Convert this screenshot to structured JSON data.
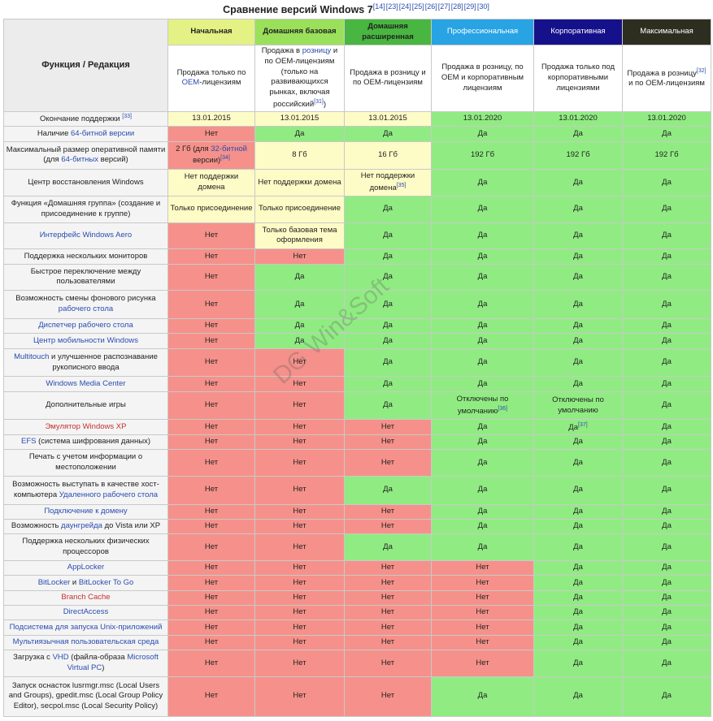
{
  "caption": {
    "title": "Сравнение версий Windows 7",
    "refs": [
      "[14]",
      "[23]",
      "[24]",
      "[25]",
      "[26]",
      "[27]",
      "[28]",
      "[29]",
      "[30]"
    ]
  },
  "corner_label": "Функция / Редакция",
  "editions": [
    {
      "name": "Начальная",
      "note": [
        {
          "t": "Продажа только по "
        },
        {
          "t": "OEM",
          "link": true
        },
        {
          "t": "-лицензиям"
        }
      ]
    },
    {
      "name": "Домашняя базовая",
      "note": [
        {
          "t": "Продажа в "
        },
        {
          "t": "розницу",
          "link": true
        },
        {
          "t": " и по OEM-лицензиям (только на развивающихся рынках, включая российский"
        },
        {
          "t": "[31]",
          "ref": true
        },
        {
          "t": ")"
        }
      ]
    },
    {
      "name": "Домашняя расширенная",
      "note": [
        {
          "t": "Продажа в розницу и по OEM-лицензиям"
        }
      ]
    },
    {
      "name": "Профессиональная",
      "note": [
        {
          "t": "Продажа в розницу, по OEM и корпоративным лицензиям"
        }
      ]
    },
    {
      "name": "Корпоративная",
      "note": [
        {
          "t": "Продажа только под корпоративными лицензиями"
        }
      ]
    },
    {
      "name": "Максимальная",
      "note": [
        {
          "t": "Продажа в розницу"
        },
        {
          "t": "[32]",
          "ref": true
        },
        {
          "t": " и по OEM-лицензиям"
        }
      ]
    }
  ],
  "rows": [
    {
      "feature": [
        {
          "t": "Окончание поддержки "
        },
        {
          "t": "[33]",
          "ref": true
        }
      ],
      "cells": [
        {
          "v": "13.01.2015",
          "s": "part"
        },
        {
          "v": "13.01.2015",
          "s": "part"
        },
        {
          "v": "13.01.2015",
          "s": "part"
        },
        {
          "v": "13.01.2020",
          "s": "yes"
        },
        {
          "v": "13.01.2020",
          "s": "yes"
        },
        {
          "v": "13.01.2020",
          "s": "yes"
        }
      ]
    },
    {
      "feature": [
        {
          "t": "Наличие "
        },
        {
          "t": "64-битной версии",
          "link": true
        }
      ],
      "cells": [
        {
          "v": "Нет",
          "s": "no"
        },
        {
          "v": "Да",
          "s": "yes"
        },
        {
          "v": "Да",
          "s": "yes"
        },
        {
          "v": "Да",
          "s": "yes"
        },
        {
          "v": "Да",
          "s": "yes"
        },
        {
          "v": "Да",
          "s": "yes"
        }
      ]
    },
    {
      "feature": [
        {
          "t": "Максимальный размер оперативной памяти (для "
        },
        {
          "t": "64-битных",
          "link": true
        },
        {
          "t": " версий)"
        }
      ],
      "cells": [
        {
          "v": "2 Гб (для ",
          "s": "no",
          "extra": [
            {
              "t": "32-битной",
              "link": true
            },
            {
              "t": " версии)"
            },
            {
              "t": "[34]",
              "ref": true
            }
          ]
        },
        {
          "v": "8 Гб",
          "s": "part"
        },
        {
          "v": "16 Гб",
          "s": "part"
        },
        {
          "v": "192 Гб",
          "s": "yes"
        },
        {
          "v": "192 Гб",
          "s": "yes"
        },
        {
          "v": "192 Гб",
          "s": "yes"
        }
      ]
    },
    {
      "feature": [
        {
          "t": "Центр восстановления Windows"
        }
      ],
      "cells": [
        {
          "v": "Нет поддержки домена",
          "s": "part"
        },
        {
          "v": "Нет поддержки домена",
          "s": "part"
        },
        {
          "v": "Нет поддержки домена",
          "s": "part",
          "extra": [
            {
              "t": "[35]",
              "ref": true
            }
          ]
        },
        {
          "v": "Да",
          "s": "yes"
        },
        {
          "v": "Да",
          "s": "yes"
        },
        {
          "v": "Да",
          "s": "yes"
        }
      ]
    },
    {
      "feature": [
        {
          "t": "Функция «Домашняя группа» (создание и присоединение к группе)"
        }
      ],
      "cells": [
        {
          "v": "Только присоединение",
          "s": "part"
        },
        {
          "v": "Только присоединение",
          "s": "part"
        },
        {
          "v": "Да",
          "s": "yes"
        },
        {
          "v": "Да",
          "s": "yes"
        },
        {
          "v": "Да",
          "s": "yes"
        },
        {
          "v": "Да",
          "s": "yes"
        }
      ]
    },
    {
      "feature": [
        {
          "t": "Интерфейс Windows Aero",
          "link": true
        }
      ],
      "cells": [
        {
          "v": "Нет",
          "s": "no"
        },
        {
          "v": "Только базовая тема оформления",
          "s": "part"
        },
        {
          "v": "Да",
          "s": "yes"
        },
        {
          "v": "Да",
          "s": "yes"
        },
        {
          "v": "Да",
          "s": "yes"
        },
        {
          "v": "Да",
          "s": "yes"
        }
      ]
    },
    {
      "feature": [
        {
          "t": "Поддержка нескольких мониторов"
        }
      ],
      "cells": [
        {
          "v": "Нет",
          "s": "no"
        },
        {
          "v": "Нет",
          "s": "no"
        },
        {
          "v": "Да",
          "s": "yes"
        },
        {
          "v": "Да",
          "s": "yes"
        },
        {
          "v": "Да",
          "s": "yes"
        },
        {
          "v": "Да",
          "s": "yes"
        }
      ]
    },
    {
      "feature": [
        {
          "t": "Быстрое переключение между пользователями"
        }
      ],
      "cells": [
        {
          "v": "Нет",
          "s": "no"
        },
        {
          "v": "Да",
          "s": "yes"
        },
        {
          "v": "Да",
          "s": "yes"
        },
        {
          "v": "Да",
          "s": "yes"
        },
        {
          "v": "Да",
          "s": "yes"
        },
        {
          "v": "Да",
          "s": "yes"
        }
      ]
    },
    {
      "feature": [
        {
          "t": "Возможность смены фонового рисунка "
        },
        {
          "t": "рабочего стола",
          "link": true
        }
      ],
      "cells": [
        {
          "v": "Нет",
          "s": "no"
        },
        {
          "v": "Да",
          "s": "yes"
        },
        {
          "v": "Да",
          "s": "yes"
        },
        {
          "v": "Да",
          "s": "yes"
        },
        {
          "v": "Да",
          "s": "yes"
        },
        {
          "v": "Да",
          "s": "yes"
        }
      ]
    },
    {
      "feature": [
        {
          "t": "Диспетчер рабочего стола",
          "link": true
        }
      ],
      "cells": [
        {
          "v": "Нет",
          "s": "no"
        },
        {
          "v": "Да",
          "s": "yes"
        },
        {
          "v": "Да",
          "s": "yes"
        },
        {
          "v": "Да",
          "s": "yes"
        },
        {
          "v": "Да",
          "s": "yes"
        },
        {
          "v": "Да",
          "s": "yes"
        }
      ]
    },
    {
      "feature": [
        {
          "t": "Центр мобильности Windows",
          "link": true
        }
      ],
      "cells": [
        {
          "v": "Нет",
          "s": "no"
        },
        {
          "v": "Да",
          "s": "yes"
        },
        {
          "v": "Да",
          "s": "yes"
        },
        {
          "v": "Да",
          "s": "yes"
        },
        {
          "v": "Да",
          "s": "yes"
        },
        {
          "v": "Да",
          "s": "yes"
        }
      ]
    },
    {
      "feature": [
        {
          "t": "Multitouch",
          "link": true
        },
        {
          "t": " и улучшенное распознавание рукописного ввода"
        }
      ],
      "cells": [
        {
          "v": "Нет",
          "s": "no"
        },
        {
          "v": "Нет",
          "s": "no"
        },
        {
          "v": "Да",
          "s": "yes"
        },
        {
          "v": "Да",
          "s": "yes"
        },
        {
          "v": "Да",
          "s": "yes"
        },
        {
          "v": "Да",
          "s": "yes"
        }
      ]
    },
    {
      "feature": [
        {
          "t": "Windows Media Center",
          "link": true
        }
      ],
      "cells": [
        {
          "v": "Нет",
          "s": "no"
        },
        {
          "v": "Нет",
          "s": "no"
        },
        {
          "v": "Да",
          "s": "yes"
        },
        {
          "v": "Да",
          "s": "yes"
        },
        {
          "v": "Да",
          "s": "yes"
        },
        {
          "v": "Да",
          "s": "yes"
        }
      ]
    },
    {
      "feature": [
        {
          "t": "Дополнительные игры"
        }
      ],
      "cells": [
        {
          "v": "Нет",
          "s": "no"
        },
        {
          "v": "Нет",
          "s": "no"
        },
        {
          "v": "Да",
          "s": "yes"
        },
        {
          "v": "Отключены по умолчанию",
          "s": "yes",
          "extra": [
            {
              "t": "[36]",
              "ref": true
            }
          ]
        },
        {
          "v": "Отключены по умолчанию",
          "s": "yes"
        },
        {
          "v": "Да",
          "s": "yes"
        }
      ]
    },
    {
      "feature": [
        {
          "t": "Эмулятор Windows XP",
          "red": true
        }
      ],
      "cells": [
        {
          "v": "Нет",
          "s": "no"
        },
        {
          "v": "Нет",
          "s": "no"
        },
        {
          "v": "Нет",
          "s": "no"
        },
        {
          "v": "Да",
          "s": "yes"
        },
        {
          "v": "Да",
          "s": "yes",
          "extra": [
            {
              "t": "[37]",
              "ref": true
            }
          ]
        },
        {
          "v": "Да",
          "s": "yes"
        }
      ]
    },
    {
      "feature": [
        {
          "t": "EFS",
          "link": true
        },
        {
          "t": " (система шифрования данных)"
        }
      ],
      "cells": [
        {
          "v": "Нет",
          "s": "no"
        },
        {
          "v": "Нет",
          "s": "no"
        },
        {
          "v": "Нет",
          "s": "no"
        },
        {
          "v": "Да",
          "s": "yes"
        },
        {
          "v": "Да",
          "s": "yes"
        },
        {
          "v": "Да",
          "s": "yes"
        }
      ]
    },
    {
      "feature": [
        {
          "t": "Печать с учетом информации о местоположении"
        }
      ],
      "cells": [
        {
          "v": "Нет",
          "s": "no"
        },
        {
          "v": "Нет",
          "s": "no"
        },
        {
          "v": "Нет",
          "s": "no"
        },
        {
          "v": "Да",
          "s": "yes"
        },
        {
          "v": "Да",
          "s": "yes"
        },
        {
          "v": "Да",
          "s": "yes"
        }
      ]
    },
    {
      "feature": [
        {
          "t": "Возможность выступать в качестве хост-компьютера "
        },
        {
          "t": "Удаленного рабочего стола",
          "link": true
        }
      ],
      "cells": [
        {
          "v": "Нет",
          "s": "no"
        },
        {
          "v": "Нет",
          "s": "no"
        },
        {
          "v": "Да",
          "s": "yes"
        },
        {
          "v": "Да",
          "s": "yes"
        },
        {
          "v": "Да",
          "s": "yes"
        },
        {
          "v": "Да",
          "s": "yes"
        }
      ]
    },
    {
      "feature": [
        {
          "t": "Подключение к домену",
          "link": true
        }
      ],
      "cells": [
        {
          "v": "Нет",
          "s": "no"
        },
        {
          "v": "Нет",
          "s": "no"
        },
        {
          "v": "Нет",
          "s": "no"
        },
        {
          "v": "Да",
          "s": "yes"
        },
        {
          "v": "Да",
          "s": "yes"
        },
        {
          "v": "Да",
          "s": "yes"
        }
      ]
    },
    {
      "feature": [
        {
          "t": "Возможность "
        },
        {
          "t": "даунгрейда",
          "link": true
        },
        {
          "t": " до Vista или XP"
        }
      ],
      "cells": [
        {
          "v": "Нет",
          "s": "no"
        },
        {
          "v": "Нет",
          "s": "no"
        },
        {
          "v": "Нет",
          "s": "no"
        },
        {
          "v": "Да",
          "s": "yes"
        },
        {
          "v": "Да",
          "s": "yes"
        },
        {
          "v": "Да",
          "s": "yes"
        }
      ]
    },
    {
      "feature": [
        {
          "t": "Поддержка нескольких физических процессоров"
        }
      ],
      "cells": [
        {
          "v": "Нет",
          "s": "no"
        },
        {
          "v": "Нет",
          "s": "no"
        },
        {
          "v": "Да",
          "s": "yes"
        },
        {
          "v": "Да",
          "s": "yes"
        },
        {
          "v": "Да",
          "s": "yes"
        },
        {
          "v": "Да",
          "s": "yes"
        }
      ]
    },
    {
      "feature": [
        {
          "t": "AppLocker",
          "link": true
        }
      ],
      "cells": [
        {
          "v": "Нет",
          "s": "no"
        },
        {
          "v": "Нет",
          "s": "no"
        },
        {
          "v": "Нет",
          "s": "no"
        },
        {
          "v": "Нет",
          "s": "no"
        },
        {
          "v": "Да",
          "s": "yes"
        },
        {
          "v": "Да",
          "s": "yes"
        }
      ]
    },
    {
      "feature": [
        {
          "t": "BitLocker",
          "link": true
        },
        {
          "t": " и "
        },
        {
          "t": "BitLocker To Go",
          "link": true
        }
      ],
      "cells": [
        {
          "v": "Нет",
          "s": "no"
        },
        {
          "v": "Нет",
          "s": "no"
        },
        {
          "v": "Нет",
          "s": "no"
        },
        {
          "v": "Нет",
          "s": "no"
        },
        {
          "v": "Да",
          "s": "yes"
        },
        {
          "v": "Да",
          "s": "yes"
        }
      ]
    },
    {
      "feature": [
        {
          "t": "Branch Cache",
          "red": true
        }
      ],
      "cells": [
        {
          "v": "Нет",
          "s": "no"
        },
        {
          "v": "Нет",
          "s": "no"
        },
        {
          "v": "Нет",
          "s": "no"
        },
        {
          "v": "Нет",
          "s": "no"
        },
        {
          "v": "Да",
          "s": "yes"
        },
        {
          "v": "Да",
          "s": "yes"
        }
      ]
    },
    {
      "feature": [
        {
          "t": "DirectAccess",
          "link": true
        }
      ],
      "cells": [
        {
          "v": "Нет",
          "s": "no"
        },
        {
          "v": "Нет",
          "s": "no"
        },
        {
          "v": "Нет",
          "s": "no"
        },
        {
          "v": "Нет",
          "s": "no"
        },
        {
          "v": "Да",
          "s": "yes"
        },
        {
          "v": "Да",
          "s": "yes"
        }
      ]
    },
    {
      "feature": [
        {
          "t": "Подсистема для запуска Unix-приложений",
          "link": true
        }
      ],
      "cells": [
        {
          "v": "Нет",
          "s": "no"
        },
        {
          "v": "Нет",
          "s": "no"
        },
        {
          "v": "Нет",
          "s": "no"
        },
        {
          "v": "Нет",
          "s": "no"
        },
        {
          "v": "Да",
          "s": "yes"
        },
        {
          "v": "Да",
          "s": "yes"
        }
      ]
    },
    {
      "feature": [
        {
          "t": "Мультиязычная пользовательская среда",
          "link": true
        }
      ],
      "cells": [
        {
          "v": "Нет",
          "s": "no"
        },
        {
          "v": "Нет",
          "s": "no"
        },
        {
          "v": "Нет",
          "s": "no"
        },
        {
          "v": "Нет",
          "s": "no"
        },
        {
          "v": "Да",
          "s": "yes"
        },
        {
          "v": "Да",
          "s": "yes"
        }
      ]
    },
    {
      "feature": [
        {
          "t": "Загрузка с "
        },
        {
          "t": "VHD",
          "link": true
        },
        {
          "t": " (файла-образа "
        },
        {
          "t": "Microsoft Virtual PC",
          "link": true
        },
        {
          "t": ")"
        }
      ],
      "cells": [
        {
          "v": "Нет",
          "s": "no"
        },
        {
          "v": "Нет",
          "s": "no"
        },
        {
          "v": "Нет",
          "s": "no"
        },
        {
          "v": "Нет",
          "s": "no"
        },
        {
          "v": "Да",
          "s": "yes"
        },
        {
          "v": "Да",
          "s": "yes"
        }
      ]
    },
    {
      "feature": [
        {
          "t": "Запуск оснасток lusrmgr.msc (Local Users and Groups), gpedit.msc (Local Group Policy Editor), secpol.msc (Local Security Policy)"
        }
      ],
      "cells": [
        {
          "v": "Нет",
          "s": "no"
        },
        {
          "v": "Нет",
          "s": "no"
        },
        {
          "v": "Нет",
          "s": "no"
        },
        {
          "v": "Да",
          "s": "yes"
        },
        {
          "v": "Да",
          "s": "yes"
        },
        {
          "v": "Да",
          "s": "yes"
        }
      ]
    }
  ],
  "colors": {
    "no": "#f5918a",
    "yes": "#90ec82",
    "part": "#fdfbc6",
    "link": "#2a4db0"
  },
  "watermark": "DG Win&Soft"
}
